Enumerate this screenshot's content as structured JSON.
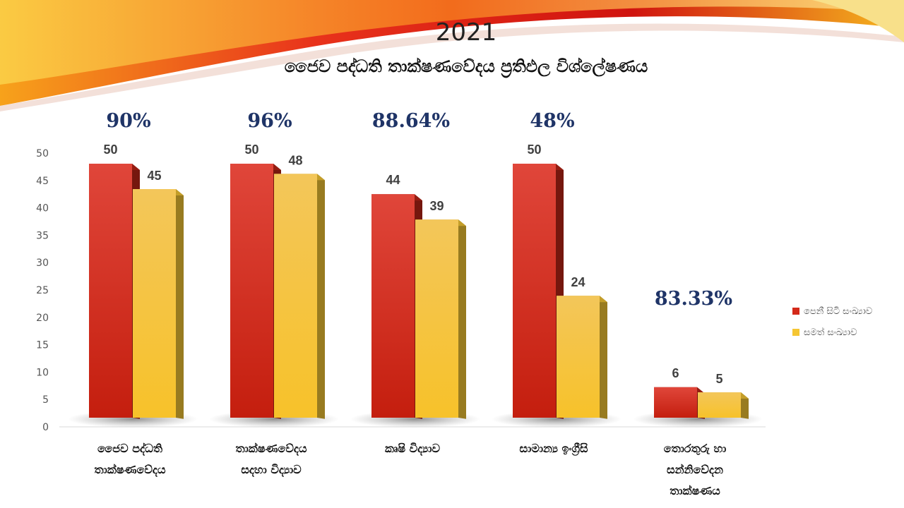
{
  "slide": {
    "year": "2021",
    "subtitle": "ජෛව පද්ධති තාක්ෂණවේදය ප්‍රතිඵල විශ්ලේෂණය"
  },
  "colors": {
    "series1": "#d42a1a",
    "series2": "#f5c633",
    "percent_text": "#1f3467"
  },
  "chart_data": {
    "type": "bar",
    "categories": [
      "ජෛව පද්ධති\nතාක්ෂණවේදය",
      "තාක්ෂණවේදය\nසදහා විද්‍යාව",
      "කෘෂි විද්‍යාව",
      "සාමාන්‍ය ඉංග්‍රීසි",
      "තොරතුරු හා\nසන්නිවේදන\nතාක්ෂණය"
    ],
    "series": [
      {
        "name": "පෙනී සිටි සංඛ්‍යාව",
        "values": [
          50,
          50,
          44,
          50,
          6
        ]
      },
      {
        "name": "සමත් සංඛ්‍යාව",
        "values": [
          45,
          48,
          39,
          24,
          5
        ]
      }
    ],
    "percentages": [
      "90%",
      "96%",
      "88.64%",
      "48%",
      "83.33%"
    ],
    "yticks": [
      "0",
      "5",
      "10",
      "15",
      "20",
      "25",
      "30",
      "35",
      "40",
      "45",
      "50"
    ],
    "ylim": [
      0,
      50
    ],
    "grid": false,
    "legend_position": "right",
    "style": "3d-clustered-column"
  }
}
